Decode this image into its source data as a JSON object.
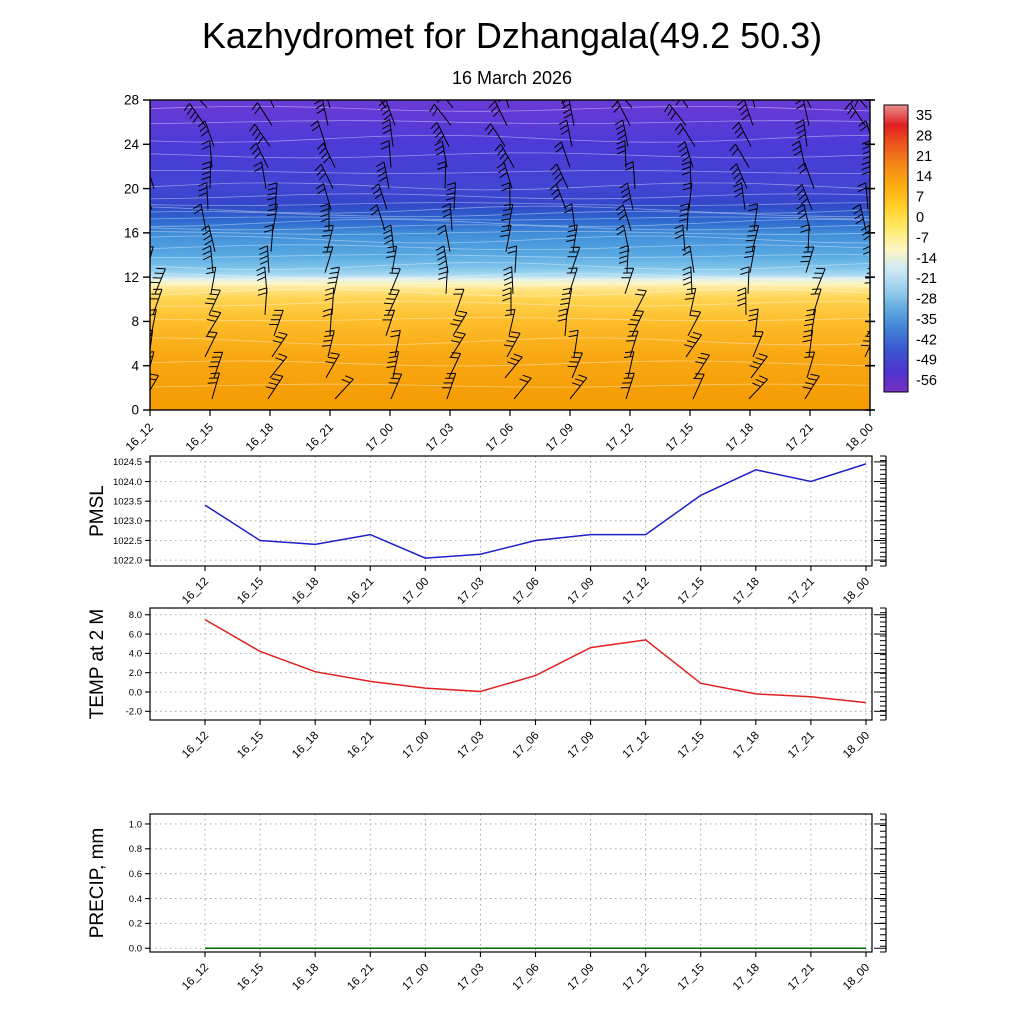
{
  "title": "Kazhydromet for Dzhangala(49.2 50.3)",
  "subtitle": "16 March 2026",
  "chart_data": [
    {
      "type": "heatmap",
      "name": "temperature-height-cross-section",
      "title": "Kazhydromet for Dzhangala(49.2 50.3)",
      "subtitle": "16 March 2026",
      "x": [
        "16_12",
        "16_15",
        "16_18",
        "16_21",
        "17_00",
        "17_03",
        "17_06",
        "17_09",
        "17_12",
        "17_15",
        "17_18",
        "17_21",
        "18_00"
      ],
      "ylim": [
        0,
        28
      ],
      "yticks": [
        0,
        4,
        8,
        12,
        16,
        20,
        24,
        28
      ],
      "overlay": "wind-barbs",
      "grid": false,
      "fill_profile": [
        {
          "h": 28.0,
          "color": "#6b3ad6"
        },
        {
          "h": 24.0,
          "color": "#4c3bd8"
        },
        {
          "h": 20.0,
          "color": "#4145d2"
        },
        {
          "h": 18.6,
          "color": "#3547cc"
        },
        {
          "h": 18.0,
          "color": "#2e55c9"
        },
        {
          "h": 17.0,
          "color": "#2f6ad0"
        },
        {
          "h": 16.0,
          "color": "#3f8cd8"
        },
        {
          "h": 14.0,
          "color": "#58a9e2"
        },
        {
          "h": 13.0,
          "color": "#79c0ea"
        },
        {
          "h": 12.2,
          "color": "#a8daf2"
        },
        {
          "h": 11.8,
          "color": "#e6f2ec"
        },
        {
          "h": 11.4,
          "color": "#fdf3bc"
        },
        {
          "h": 10.8,
          "color": "#ffe380"
        },
        {
          "h": 10.0,
          "color": "#ffd34f"
        },
        {
          "h": 8.0,
          "color": "#fdbd2b"
        },
        {
          "h": 5.0,
          "color": "#f9a914"
        },
        {
          "h": 0.0,
          "color": "#f49a02"
        }
      ],
      "colorbar": {
        "ticks": [
          35,
          28,
          21,
          14,
          7,
          0,
          -7,
          -14,
          -21,
          -28,
          -35,
          -42,
          -49,
          -56
        ],
        "colors": [
          "#e89090",
          "#e02020",
          "#ee5a1e",
          "#f68a18",
          "#fbae12",
          "#ffd028",
          "#ffe96a",
          "#fdf6c0",
          "#cfeaf4",
          "#99cfec",
          "#5fa8de",
          "#3f7fd6",
          "#3b55d2",
          "#4e35d0",
          "#7a2fc0"
        ]
      }
    },
    {
      "type": "line",
      "ylabel": "PMSL",
      "color": "#1f1fc8",
      "x": [
        "16_12",
        "16_15",
        "16_18",
        "16_21",
        "17_00",
        "17_03",
        "17_06",
        "17_09",
        "17_12",
        "17_15",
        "17_18",
        "17_21",
        "18_00"
      ],
      "values": [
        1023.4,
        1022.5,
        1022.4,
        1022.65,
        1022.05,
        1022.15,
        1022.5,
        1022.65,
        1022.65,
        1023.65,
        1024.3,
        1024.0,
        1024.45
      ],
      "yticks": [
        1022.0,
        1022.5,
        1023.0,
        1023.5,
        1024.0,
        1024.5
      ],
      "ylim": [
        1021.85,
        1024.65
      ],
      "ytick_decimals": 1,
      "grid": "dashed"
    },
    {
      "type": "line",
      "ylabel": "TEMP at 2 M",
      "color": "#e02020",
      "x": [
        "16_12",
        "16_15",
        "16_18",
        "16_21",
        "17_00",
        "17_03",
        "17_06",
        "17_09",
        "17_12",
        "17_15",
        "17_18",
        "17_21",
        "18_00"
      ],
      "values": [
        7.5,
        4.2,
        2.1,
        1.1,
        0.4,
        0.05,
        1.7,
        4.6,
        5.4,
        0.9,
        -0.2,
        -0.5,
        -1.1
      ],
      "yticks": [
        -2.0,
        0.0,
        2.0,
        4.0,
        6.0,
        8.0
      ],
      "ylim": [
        -2.9,
        8.7
      ],
      "ytick_decimals": 1,
      "grid": "dashed"
    },
    {
      "type": "line",
      "ylabel": "PRECIP, mm",
      "color": "#006400",
      "x": [
        "16_12",
        "16_15",
        "16_18",
        "16_21",
        "17_00",
        "17_03",
        "17_06",
        "17_09",
        "17_12",
        "17_15",
        "17_18",
        "17_21",
        "18_00"
      ],
      "values": [
        0,
        0,
        0,
        0,
        0,
        0,
        0,
        0,
        0,
        0,
        0,
        0,
        0
      ],
      "yticks": [
        0.0,
        0.2,
        0.4,
        0.6,
        0.8,
        1.0
      ],
      "ylim": [
        -0.03,
        1.08
      ],
      "ytick_decimals": 1,
      "grid": "dashed"
    }
  ]
}
